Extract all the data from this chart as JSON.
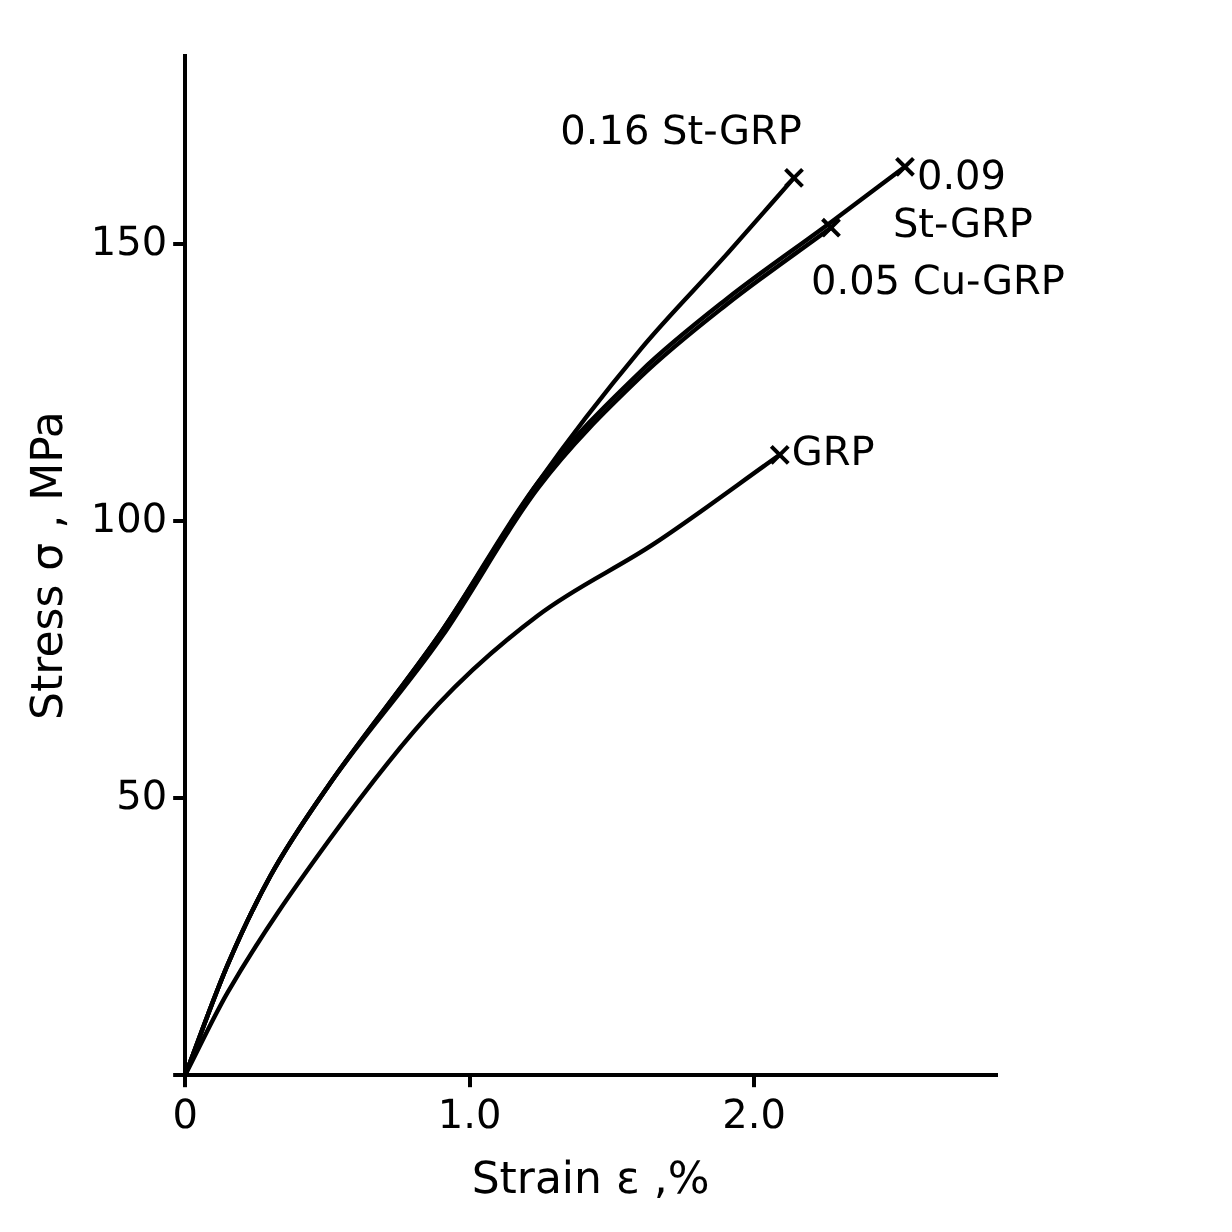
{
  "chart_data": {
    "type": "line",
    "xlabel": "Strain ε ,%",
    "ylabel": "Stress σ , MPa",
    "xlim": [
      0,
      2.85
    ],
    "ylim": [
      0,
      184
    ],
    "xticks": [
      0,
      {
        "value": 1,
        "label": "1.0"
      },
      {
        "value": 2,
        "label": "2.0"
      }
    ],
    "yticks": [
      {
        "value": 0,
        "label": null
      },
      50,
      100,
      150
    ],
    "grid": false,
    "legend": false,
    "series": [
      {
        "name": "0.16 St-GRP",
        "color": "#000000",
        "x": [
          0,
          0.15,
          0.3,
          0.5,
          0.9,
          1.24,
          1.6,
          1.9,
          2.14
        ],
        "values": [
          0,
          20,
          36,
          52,
          80,
          107,
          131,
          148,
          162
        ]
      },
      {
        "name": "0.09 St-GRP",
        "color": "#000000",
        "x": [
          0,
          0.15,
          0.3,
          0.5,
          0.9,
          1.24,
          1.6,
          1.9,
          2.27,
          2.53
        ],
        "values": [
          0,
          20,
          36,
          52,
          80,
          107,
          127,
          140,
          154,
          164
        ]
      },
      {
        "name": "0.05 Cu-GRP",
        "color": "#000000",
        "x": [
          0,
          0.15,
          0.3,
          0.5,
          0.9,
          1.24,
          1.6,
          1.9,
          2.27
        ],
        "values": [
          0,
          20,
          36,
          52,
          79,
          106,
          126,
          139,
          153
        ]
      },
      {
        "name": "GRP",
        "color": "#000000",
        "x": [
          0,
          0.15,
          0.5,
          0.89,
          1.24,
          1.65,
          2.09
        ],
        "values": [
          0,
          15,
          42,
          67,
          83,
          96,
          112
        ]
      }
    ]
  }
}
